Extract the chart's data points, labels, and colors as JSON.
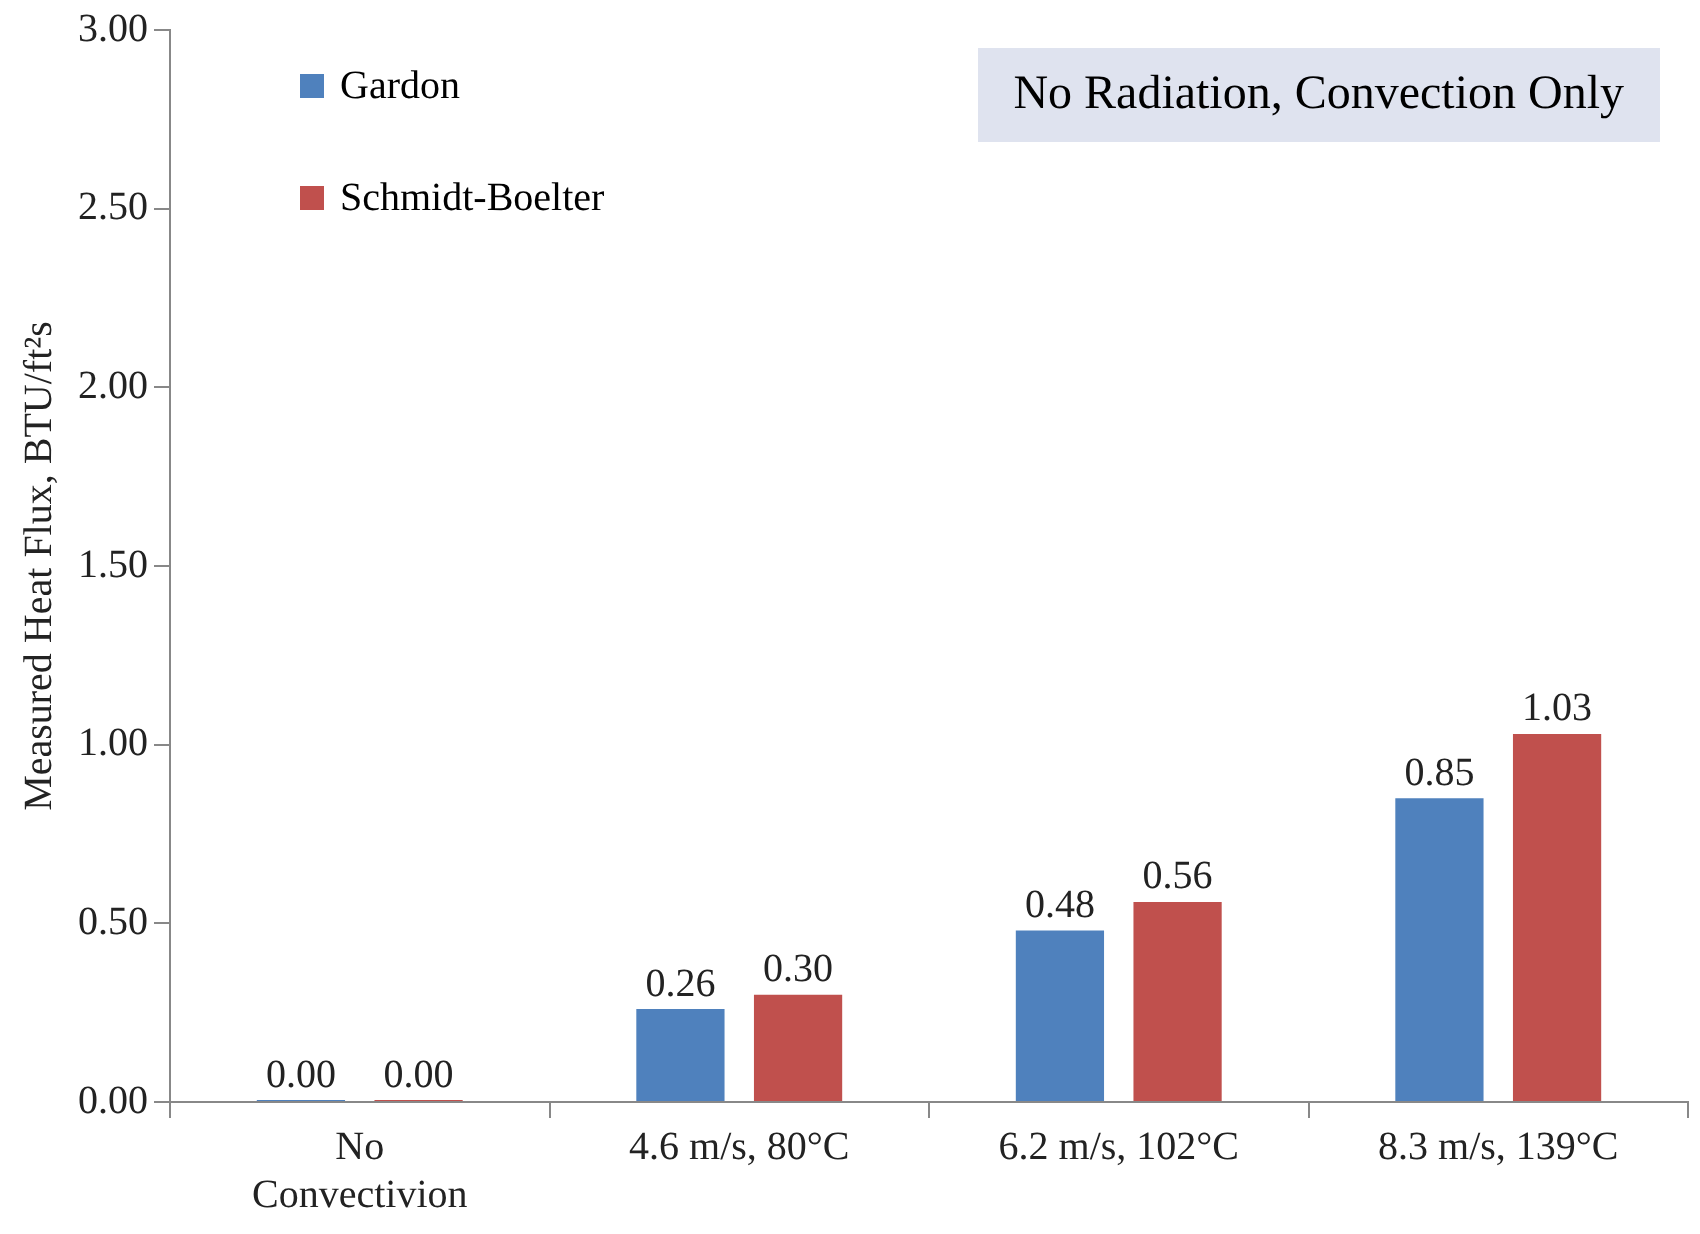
{
  "chart_data": {
    "type": "bar",
    "ylabel": "Measured Heat Flux, BTU/ft²s",
    "categories": [
      "No Convectivion",
      "4.6 m/s, 80°C",
      "6.2 m/s, 102°C",
      "8.3 m/s, 139°C"
    ],
    "series": [
      {
        "name": "Gardon",
        "color": "#4f81bd",
        "values": [
          0,
          0.26,
          0.48,
          0.85
        ],
        "value_labels": [
          "0.00",
          "0.26",
          "0.48",
          "0.85"
        ]
      },
      {
        "name": "Schmidt-Boelter",
        "color": "#c0504d",
        "values": [
          0,
          0.3,
          0.56,
          1.03
        ],
        "value_labels": [
          "0.00",
          "0.30",
          "0.56",
          "1.03"
        ]
      }
    ],
    "ylim": [
      0,
      3
    ],
    "yticks": [
      {
        "value": 0,
        "label": "0.00"
      },
      {
        "value": 0.5,
        "label": "0.50"
      },
      {
        "value": 1,
        "label": "1.00"
      },
      {
        "value": 1.5,
        "label": "1.50"
      },
      {
        "value": 2,
        "label": "2.00"
      },
      {
        "value": 2.5,
        "label": "2.50"
      },
      {
        "value": 3,
        "label": "3.00"
      }
    ],
    "annotations": [
      "No Radiation, Convection Only"
    ],
    "legend": "top left",
    "grid": false
  }
}
